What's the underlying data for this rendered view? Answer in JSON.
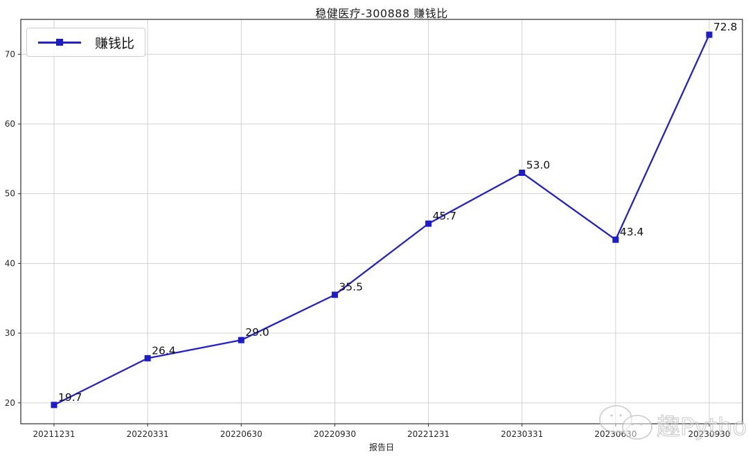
{
  "page": {
    "title": "稳健医疗-300888 赚钱比"
  },
  "legend": {
    "label": "赚钱比"
  },
  "watermark": {
    "text": "趣Python"
  },
  "colors": {
    "line": "#2121c4",
    "marker": "#1c1cc8",
    "grid": "#cccccc",
    "axis_border": "#2b2b2b",
    "tick_text": "#262626",
    "label_text": "#111111",
    "watermark": "#c2c2c2"
  },
  "chart_data": {
    "type": "line",
    "title": "稳健医疗-300888 赚钱比",
    "xlabel": "报告日",
    "ylabel": "",
    "categories": [
      "20211231",
      "20220331",
      "20220630",
      "20220930",
      "20221231",
      "20230331",
      "20230630",
      "20230930"
    ],
    "series": [
      {
        "name": "赚钱比",
        "values": [
          19.7,
          26.4,
          29.0,
          35.5,
          45.7,
          53.0,
          43.4,
          72.8
        ],
        "point_labels": [
          "19.7",
          "26.4",
          "29.0",
          "35.5",
          "45.7",
          "53.0",
          "43.4",
          "72.8"
        ]
      }
    ],
    "yticks": [
      20,
      30,
      40,
      50,
      60,
      70
    ],
    "ylim": [
      17,
      75
    ],
    "grid": true,
    "legend_position": "upper-left",
    "marker": "square"
  }
}
